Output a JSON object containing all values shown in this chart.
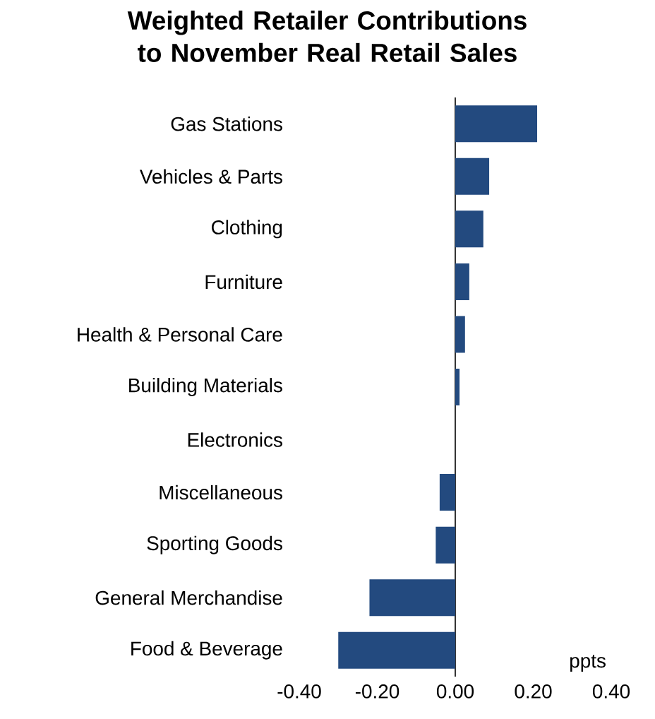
{
  "chart_data": {
    "type": "bar",
    "orientation": "horizontal",
    "title": "Weighted Retailer Contributions to November Real Retail Sales",
    "categories": [
      "Gas Stations",
      "Vehicles & Parts",
      "Clothing",
      "Furniture",
      "Health & Personal Care",
      "Building Materials",
      "Electronics",
      "Miscellaneous",
      "Sporting Goods",
      "General Merchandise",
      "Food & Beverage"
    ],
    "values": [
      0.21,
      0.087,
      0.072,
      0.036,
      0.025,
      0.011,
      0,
      -0.04,
      -0.05,
      -0.22,
      -0.3
    ],
    "color": "#234a7f",
    "xlim": [
      -0.4,
      0.4
    ],
    "xticks": [
      {
        "value": -0.4,
        "label": "-0.40"
      },
      {
        "value": -0.2,
        "label": "-0.20"
      },
      {
        "value": 0,
        "label": "0.00"
      },
      {
        "value": 0.2,
        "label": "0.20"
      },
      {
        "value": 0.4,
        "label": "0.40"
      }
    ],
    "annotations": [
      "ppts"
    ]
  }
}
